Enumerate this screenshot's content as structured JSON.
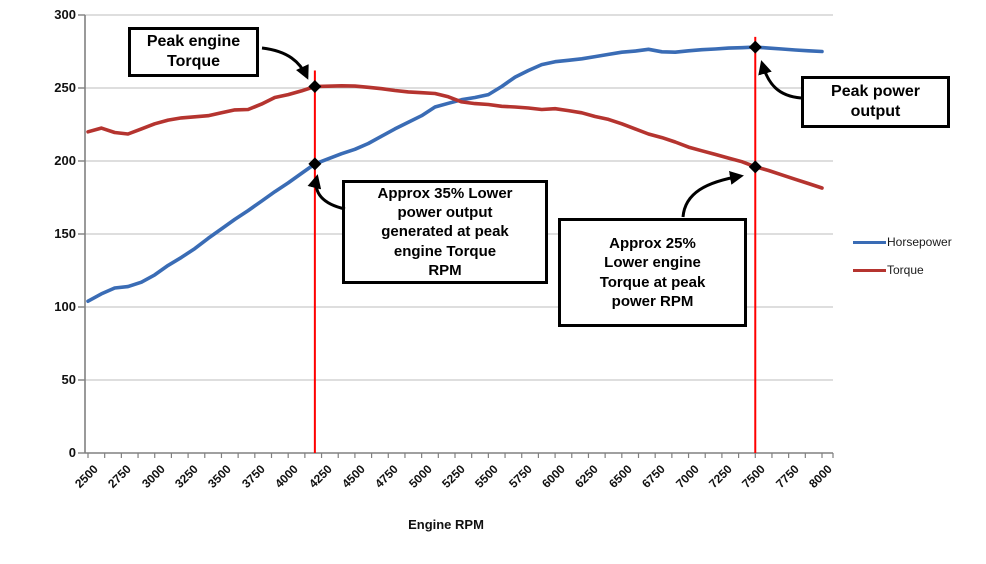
{
  "chart_data": {
    "type": "line",
    "title": "",
    "xlabel": "Engine RPM",
    "ylabel": "",
    "xlim": [
      2500,
      8000
    ],
    "ylim": [
      0,
      300
    ],
    "y_ticks": [
      0,
      50,
      100,
      150,
      200,
      250,
      300
    ],
    "x_tick_labels": [
      "2500",
      "2750",
      "3000",
      "3250",
      "3500",
      "3750",
      "4000",
      "4250",
      "4500",
      "4750",
      "5000",
      "5250",
      "5500",
      "5750",
      "6000",
      "6250",
      "6500",
      "6750",
      "7000",
      "7250",
      "7500",
      "7750",
      "8000"
    ],
    "x_minor_tick_step": 125,
    "grid": "horizontal",
    "legend_position": "right",
    "x_start": 2500,
    "x_step": 100,
    "series": [
      {
        "name": "Horsepower",
        "color": "#3A6CB5",
        "values": [
          104,
          109,
          113,
          114,
          117,
          122,
          128.5,
          134,
          140,
          147,
          153.5,
          160,
          166,
          172.5,
          179,
          185,
          191.5,
          198,
          201.5,
          205,
          208,
          212,
          217,
          222,
          226.5,
          231,
          237,
          239.5,
          242,
          243.5,
          245.5,
          251,
          257.5,
          262,
          266,
          268,
          269,
          270,
          271.5,
          273,
          274.5,
          275.3,
          276.5,
          274.8,
          274.5,
          275.5,
          276.2,
          276.7,
          277.3,
          277.6,
          278,
          277.3,
          276.7,
          276,
          275.5,
          275
        ]
      },
      {
        "name": "Torque",
        "color": "#B5342F",
        "values": [
          220,
          222.5,
          219.5,
          218.5,
          222,
          225.5,
          228,
          229.5,
          230.3,
          231,
          233,
          235,
          235.3,
          239,
          243.5,
          245.5,
          248,
          251,
          251.2,
          251.5,
          251.3,
          250.5,
          249.5,
          248.3,
          247.3,
          246.8,
          246.2,
          244,
          240.5,
          239.3,
          238.7,
          237.5,
          237,
          236.3,
          235.3,
          235.8,
          234.5,
          233,
          230.5,
          228.5,
          225.5,
          222,
          218.5,
          216,
          213,
          209.5,
          207,
          204.5,
          202,
          199.5,
          196,
          193.5,
          190.5,
          187.5,
          184.5,
          181.5
        ]
      }
    ]
  },
  "legend": {
    "entries": [
      {
        "label": "Horsepower",
        "color": "#3A6CB5"
      },
      {
        "label": "Torque",
        "color": "#B5342F"
      }
    ]
  },
  "annotations": {
    "peak_torque": "Peak engine Torque",
    "low_power_at_peak_torque": "Approx 35% Lower power output generated at peak engine Torque RPM",
    "low_torque_at_peak_power": "Approx 25% Lower engine Torque at peak power RPM",
    "peak_power": "Peak power output"
  },
  "markers": [
    {
      "rpm": 4200,
      "value": 251,
      "desc": "peak-engine-torque-point"
    },
    {
      "rpm": 4200,
      "value": 198,
      "desc": "power-at-peak-torque-rpm"
    },
    {
      "rpm": 7500,
      "value": 278,
      "desc": "peak-power-point"
    },
    {
      "rpm": 7500,
      "value": 196,
      "desc": "torque-at-peak-power-rpm"
    }
  ],
  "vlines": [
    {
      "rpm": 4200,
      "top_value": 262,
      "color": "#FF0000"
    },
    {
      "rpm": 7500,
      "top_value": 285,
      "color": "#FF0000"
    }
  ],
  "colors": {
    "gridline": "#C9C9C9",
    "axis": "#808080",
    "marker": "#000000"
  }
}
